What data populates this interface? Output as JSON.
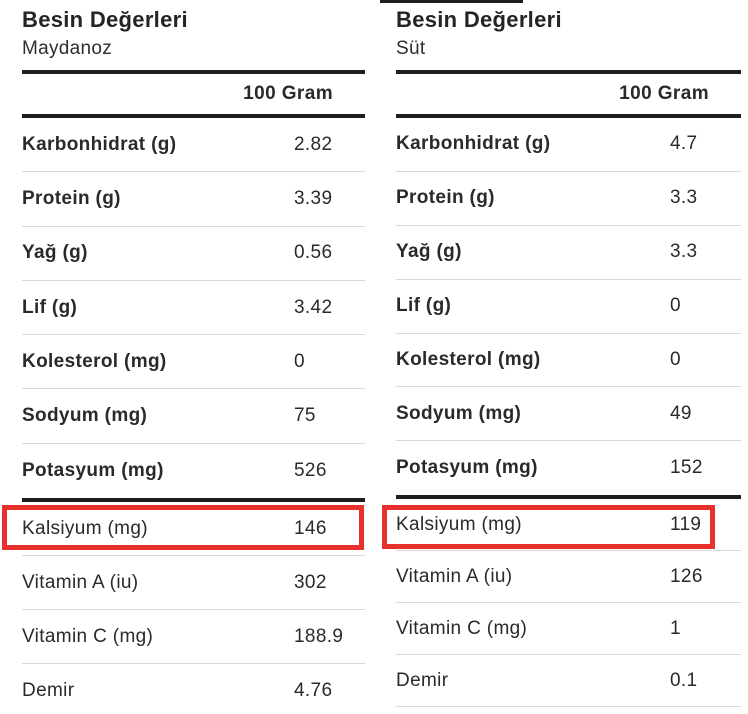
{
  "colors": {
    "highlight_red": "#e8302d",
    "heavy_line": "#1e1e1e",
    "light_line": "#d9d9d9",
    "text": "#2a2a2c"
  },
  "tables": [
    {
      "title": "Besin Değerleri",
      "subtitle": "Maydanoz",
      "unit_header": "100 Gram",
      "rows": [
        {
          "label": "Karbonhidrat (g)",
          "value": "2.82",
          "emphasis": true,
          "highlighted": false
        },
        {
          "label": "Protein (g)",
          "value": "3.39",
          "emphasis": true,
          "highlighted": false
        },
        {
          "label": "Yağ (g)",
          "value": "0.56",
          "emphasis": true,
          "highlighted": false
        },
        {
          "label": "Lif (g)",
          "value": "3.42",
          "emphasis": true,
          "highlighted": false
        },
        {
          "label": "Kolesterol (mg)",
          "value": "0",
          "emphasis": true,
          "highlighted": false
        },
        {
          "label": "Sodyum (mg)",
          "value": "75",
          "emphasis": true,
          "highlighted": false
        },
        {
          "label": "Potasyum (mg)",
          "value": "526",
          "emphasis": true,
          "highlighted": false
        },
        {
          "label": "Kalsiyum (mg)",
          "value": "146",
          "emphasis": false,
          "highlighted": true
        },
        {
          "label": "Vitamin A (iu)",
          "value": "302",
          "emphasis": false,
          "highlighted": false
        },
        {
          "label": "Vitamin C (mg)",
          "value": "188.9",
          "emphasis": false,
          "highlighted": false
        },
        {
          "label": "Demir",
          "value": "4.76",
          "emphasis": false,
          "highlighted": false
        }
      ]
    },
    {
      "title": "Besin Değerleri",
      "subtitle": "Süt",
      "unit_header": "100 Gram",
      "rows": [
        {
          "label": "Karbonhidrat (g)",
          "value": "4.7",
          "emphasis": true,
          "highlighted": false
        },
        {
          "label": "Protein (g)",
          "value": "3.3",
          "emphasis": true,
          "highlighted": false
        },
        {
          "label": "Yağ (g)",
          "value": "3.3",
          "emphasis": true,
          "highlighted": false
        },
        {
          "label": "Lif (g)",
          "value": "0",
          "emphasis": true,
          "highlighted": false
        },
        {
          "label": "Kolesterol (mg)",
          "value": "0",
          "emphasis": true,
          "highlighted": false
        },
        {
          "label": "Sodyum (mg)",
          "value": "49",
          "emphasis": true,
          "highlighted": false
        },
        {
          "label": "Potasyum (mg)",
          "value": "152",
          "emphasis": true,
          "highlighted": false
        },
        {
          "label": "Kalsiyum (mg)",
          "value": "119",
          "emphasis": false,
          "highlighted": true
        },
        {
          "label": "Vitamin A (iu)",
          "value": "126",
          "emphasis": false,
          "highlighted": false
        },
        {
          "label": "Vitamin C (mg)",
          "value": "1",
          "emphasis": false,
          "highlighted": false
        },
        {
          "label": "Demir",
          "value": "0.1",
          "emphasis": false,
          "highlighted": false
        }
      ]
    }
  ]
}
